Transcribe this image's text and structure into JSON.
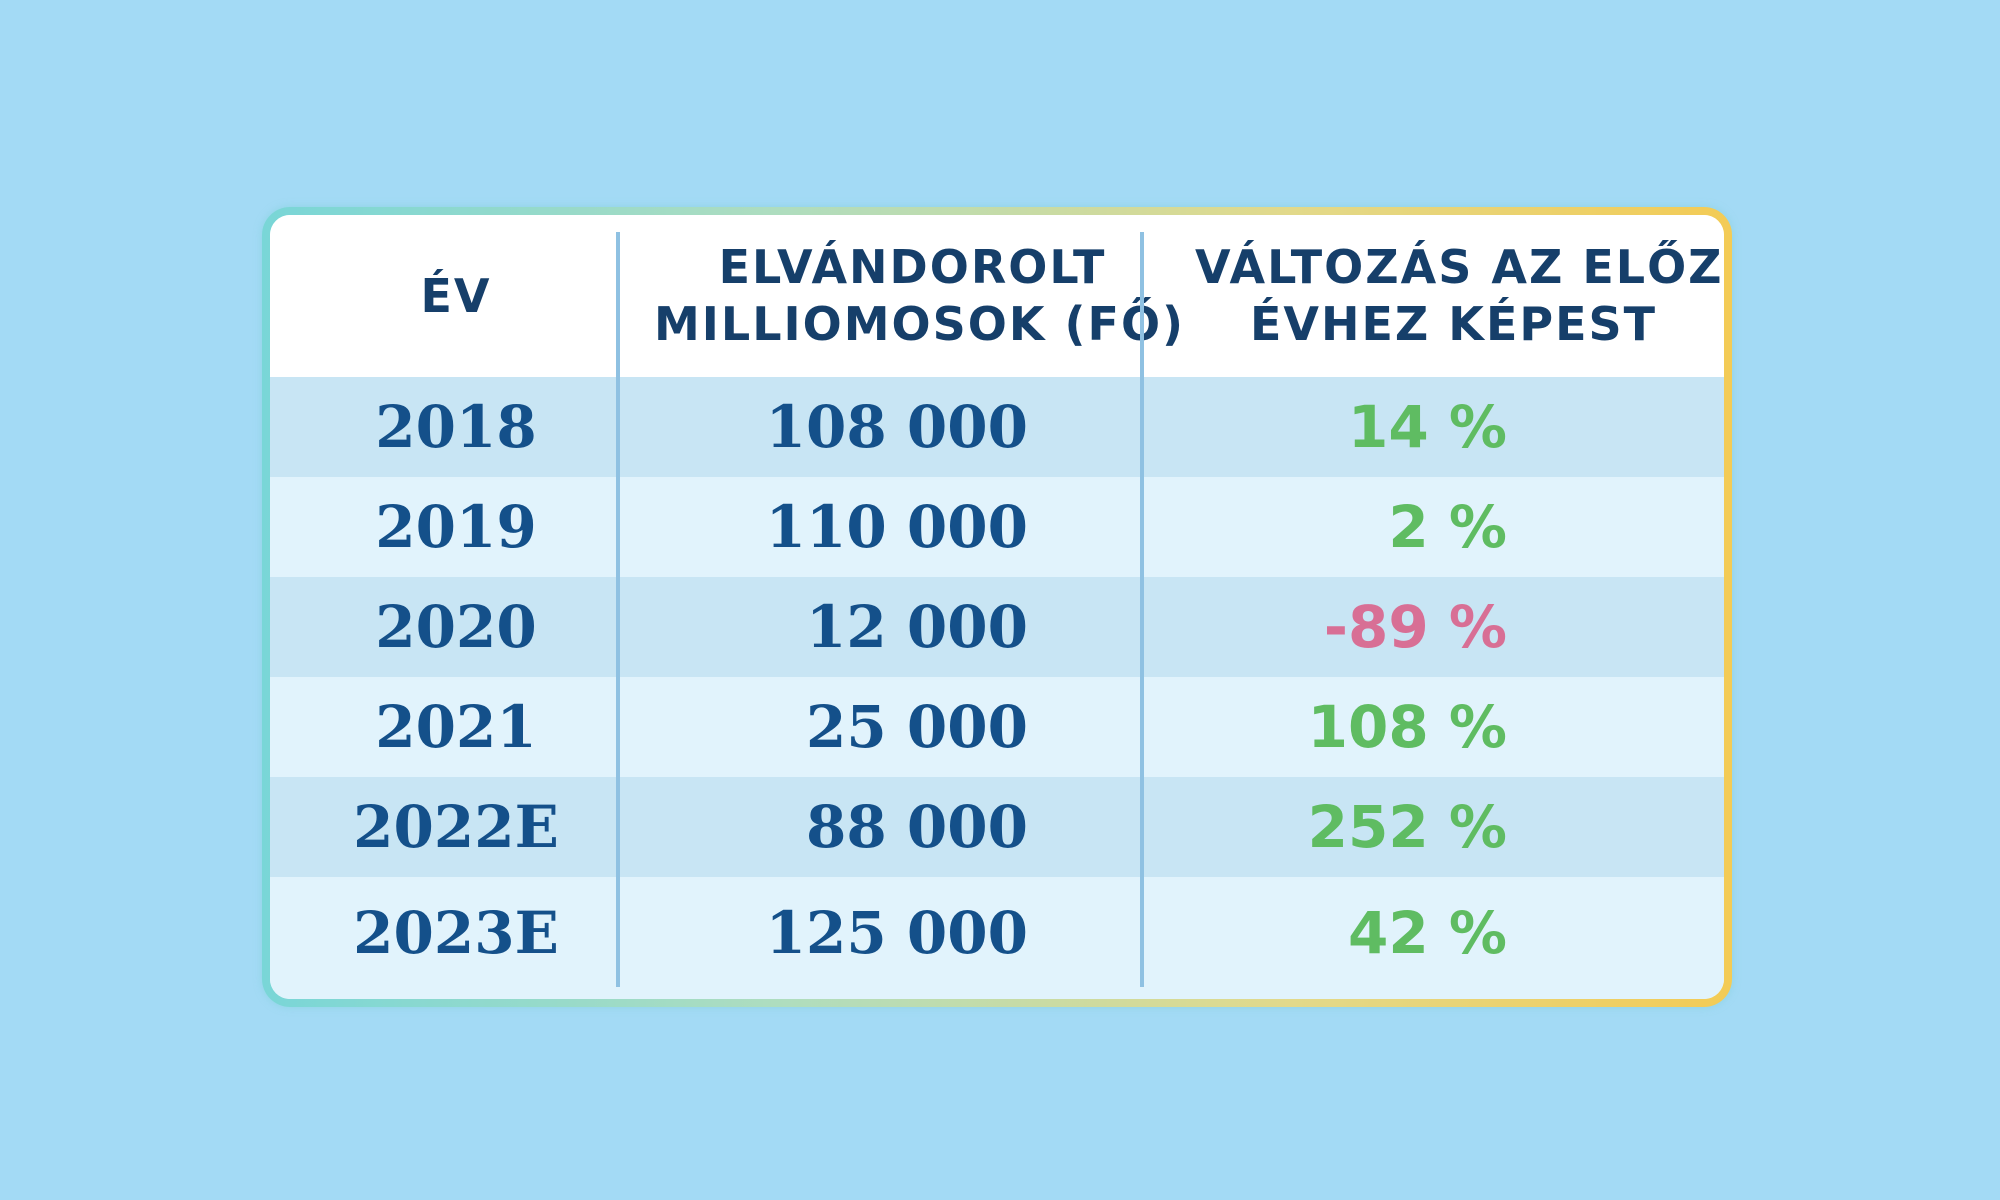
{
  "table": {
    "headers": {
      "year": [
        "ÉV"
      ],
      "count": [
        "ELVÁNDOROLT",
        "MILLIOMOSOK (FŐ)"
      ],
      "change": [
        "VÁLTOZÁS AZ ELŐZŐ",
        "ÉVHEZ KÉPEST"
      ]
    },
    "rows": [
      {
        "year": "2018",
        "count": "108 000",
        "change": "14 %"
      },
      {
        "year": "2019",
        "count": "110 000",
        "change": "2 %"
      },
      {
        "year": "2020",
        "count": "12 000",
        "change": "-89 %"
      },
      {
        "year": "2021",
        "count": "25 000",
        "change": "108 %"
      },
      {
        "year": "2022E",
        "count": "88 000",
        "change": "252 %"
      },
      {
        "year": "2023E",
        "count": "125 000",
        "change": "42 %"
      }
    ]
  },
  "colors": {
    "background": "#a3daf5",
    "header_text": "#163f6a",
    "value_text": "#14508a",
    "positive": "#5fbc62",
    "negative": "#d86f95",
    "row_dark": "#c8e5f4",
    "row_light": "#e1f3fc"
  },
  "chart_data": {
    "type": "table",
    "columns": [
      "ÉV",
      "ELVÁNDOROLT MILLIOMOSOK (FŐ)",
      "VÁLTOZÁS AZ ELŐZŐ ÉVHEZ KÉPEST"
    ],
    "categories": [
      "2018",
      "2019",
      "2020",
      "2021",
      "2022E",
      "2023E"
    ],
    "series": [
      {
        "name": "ELVÁNDOROLT MILLIOMOSOK (FŐ)",
        "values": [
          108000,
          110000,
          12000,
          25000,
          88000,
          125000
        ]
      },
      {
        "name": "VÁLTOZÁS AZ ELŐZŐ ÉVHEZ KÉPEST",
        "values": [
          14,
          2,
          -89,
          108,
          252,
          42
        ],
        "unit": "%"
      }
    ]
  }
}
